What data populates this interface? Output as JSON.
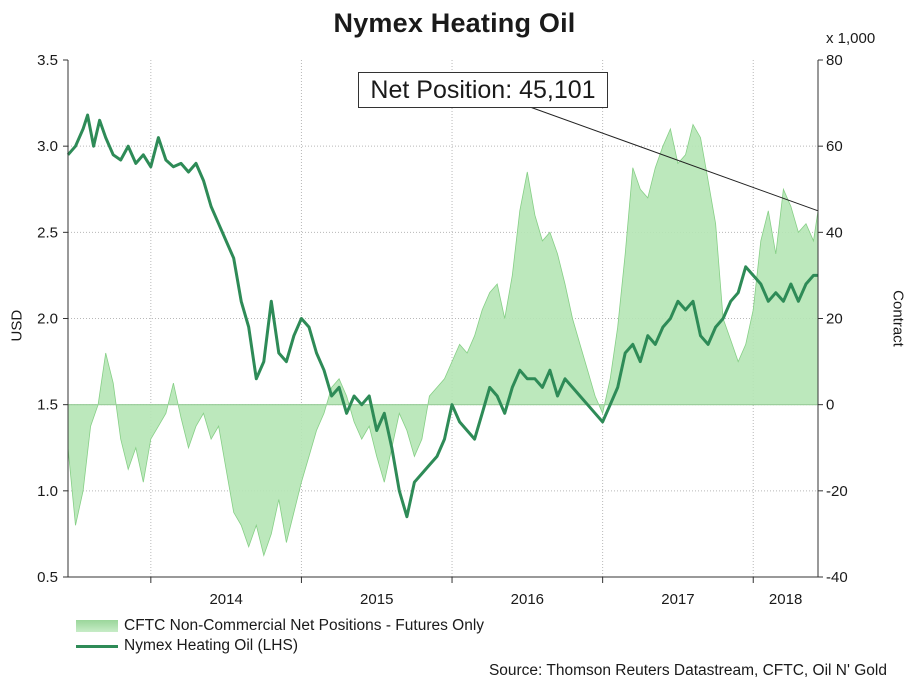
{
  "title": "Nymex Heating Oil",
  "right_axis_multiplier": "x 1,000",
  "y_left_label": "USD",
  "y_right_label": "Contract",
  "annotation": "Net Position: 45,101",
  "source": "Source: Thomson Reuters Datastream, CFTC, Oil N' Gold",
  "legend": {
    "area_label": "CFTC Non-Commercial Net Positions - Futures Only",
    "line_label": "Nymex Heating Oil (LHS)"
  },
  "colors": {
    "line": "#2e8b57",
    "area_fill": "#b5e6b5",
    "area_stroke": "#86cf86",
    "grid": "#b8b8b8"
  },
  "chart_data": {
    "type": "line",
    "title": "Nymex Heating Oil",
    "x_ticks": [
      "2014",
      "2015",
      "2016",
      "2017",
      "2018"
    ],
    "x_range": [
      2013.45,
      2018.43
    ],
    "y_left": {
      "label": "USD",
      "range": [
        0.5,
        3.5
      ],
      "ticks": [
        "0.5",
        "1.0",
        "1.5",
        "2.0",
        "2.5",
        "3.0",
        "3.5"
      ]
    },
    "y_right": {
      "label": "Contract",
      "unit": "x 1,000",
      "range": [
        -40,
        80
      ],
      "ticks": [
        "-40",
        "-20",
        "0",
        "20",
        "40",
        "60",
        "80"
      ]
    },
    "grid": true,
    "legend_position": "bottom-left",
    "series": [
      {
        "name": "CFTC Non-Commercial Net Positions - Futures Only",
        "kind": "area",
        "axis": "right",
        "points": [
          [
            2013.45,
            -10
          ],
          [
            2013.5,
            -28
          ],
          [
            2013.55,
            -20
          ],
          [
            2013.6,
            -5
          ],
          [
            2013.65,
            0
          ],
          [
            2013.7,
            12
          ],
          [
            2013.75,
            5
          ],
          [
            2013.8,
            -8
          ],
          [
            2013.85,
            -15
          ],
          [
            2013.9,
            -10
          ],
          [
            2013.95,
            -18
          ],
          [
            2014.0,
            -8
          ],
          [
            2014.05,
            -5
          ],
          [
            2014.1,
            -2
          ],
          [
            2014.15,
            5
          ],
          [
            2014.2,
            -3
          ],
          [
            2014.25,
            -10
          ],
          [
            2014.3,
            -5
          ],
          [
            2014.35,
            -2
          ],
          [
            2014.4,
            -8
          ],
          [
            2014.45,
            -5
          ],
          [
            2014.5,
            -15
          ],
          [
            2014.55,
            -25
          ],
          [
            2014.6,
            -28
          ],
          [
            2014.65,
            -33
          ],
          [
            2014.7,
            -28
          ],
          [
            2014.75,
            -35
          ],
          [
            2014.8,
            -30
          ],
          [
            2014.85,
            -22
          ],
          [
            2014.9,
            -32
          ],
          [
            2014.95,
            -25
          ],
          [
            2015.0,
            -18
          ],
          [
            2015.05,
            -12
          ],
          [
            2015.1,
            -6
          ],
          [
            2015.15,
            -2
          ],
          [
            2015.2,
            4
          ],
          [
            2015.25,
            6
          ],
          [
            2015.3,
            2
          ],
          [
            2015.35,
            -4
          ],
          [
            2015.4,
            -8
          ],
          [
            2015.45,
            -5
          ],
          [
            2015.5,
            -12
          ],
          [
            2015.55,
            -18
          ],
          [
            2015.6,
            -10
          ],
          [
            2015.65,
            -2
          ],
          [
            2015.7,
            -6
          ],
          [
            2015.75,
            -12
          ],
          [
            2015.8,
            -8
          ],
          [
            2015.85,
            2
          ],
          [
            2015.9,
            4
          ],
          [
            2015.95,
            6
          ],
          [
            2016.0,
            10
          ],
          [
            2016.05,
            14
          ],
          [
            2016.1,
            12
          ],
          [
            2016.15,
            16
          ],
          [
            2016.2,
            22
          ],
          [
            2016.25,
            26
          ],
          [
            2016.3,
            28
          ],
          [
            2016.35,
            20
          ],
          [
            2016.4,
            30
          ],
          [
            2016.45,
            45
          ],
          [
            2016.5,
            54
          ],
          [
            2016.55,
            44
          ],
          [
            2016.6,
            38
          ],
          [
            2016.65,
            40
          ],
          [
            2016.7,
            35
          ],
          [
            2016.75,
            28
          ],
          [
            2016.8,
            20
          ],
          [
            2016.85,
            14
          ],
          [
            2016.9,
            8
          ],
          [
            2016.95,
            2
          ],
          [
            2017.0,
            -2
          ],
          [
            2017.05,
            6
          ],
          [
            2017.1,
            18
          ],
          [
            2017.15,
            35
          ],
          [
            2017.2,
            55
          ],
          [
            2017.25,
            50
          ],
          [
            2017.3,
            48
          ],
          [
            2017.35,
            55
          ],
          [
            2017.4,
            60
          ],
          [
            2017.45,
            64
          ],
          [
            2017.5,
            56
          ],
          [
            2017.55,
            58
          ],
          [
            2017.6,
            65
          ],
          [
            2017.65,
            62
          ],
          [
            2017.7,
            52
          ],
          [
            2017.75,
            42
          ],
          [
            2017.8,
            20
          ],
          [
            2017.85,
            15
          ],
          [
            2017.9,
            10
          ],
          [
            2017.95,
            14
          ],
          [
            2018.0,
            22
          ],
          [
            2018.05,
            38
          ],
          [
            2018.1,
            45
          ],
          [
            2018.15,
            35
          ],
          [
            2018.2,
            50
          ],
          [
            2018.25,
            46
          ],
          [
            2018.3,
            40
          ],
          [
            2018.35,
            42
          ],
          [
            2018.4,
            38
          ],
          [
            2018.43,
            45
          ]
        ]
      },
      {
        "name": "Nymex Heating Oil (LHS)",
        "kind": "line",
        "axis": "left",
        "points": [
          [
            2013.45,
            2.95
          ],
          [
            2013.5,
            3.0
          ],
          [
            2013.55,
            3.1
          ],
          [
            2013.58,
            3.18
          ],
          [
            2013.62,
            3.0
          ],
          [
            2013.66,
            3.15
          ],
          [
            2013.7,
            3.05
          ],
          [
            2013.75,
            2.95
          ],
          [
            2013.8,
            2.92
          ],
          [
            2013.85,
            3.0
          ],
          [
            2013.9,
            2.9
          ],
          [
            2013.95,
            2.95
          ],
          [
            2014.0,
            2.88
          ],
          [
            2014.05,
            3.05
          ],
          [
            2014.1,
            2.92
          ],
          [
            2014.15,
            2.88
          ],
          [
            2014.2,
            2.9
          ],
          [
            2014.25,
            2.85
          ],
          [
            2014.3,
            2.9
          ],
          [
            2014.35,
            2.8
          ],
          [
            2014.4,
            2.65
          ],
          [
            2014.45,
            2.55
          ],
          [
            2014.5,
            2.45
          ],
          [
            2014.55,
            2.35
          ],
          [
            2014.6,
            2.1
          ],
          [
            2014.65,
            1.95
          ],
          [
            2014.7,
            1.65
          ],
          [
            2014.75,
            1.75
          ],
          [
            2014.8,
            2.1
          ],
          [
            2014.85,
            1.8
          ],
          [
            2014.9,
            1.75
          ],
          [
            2014.95,
            1.9
          ],
          [
            2015.0,
            2.0
          ],
          [
            2015.05,
            1.95
          ],
          [
            2015.1,
            1.8
          ],
          [
            2015.15,
            1.7
          ],
          [
            2015.2,
            1.55
          ],
          [
            2015.25,
            1.6
          ],
          [
            2015.3,
            1.45
          ],
          [
            2015.35,
            1.55
          ],
          [
            2015.4,
            1.5
          ],
          [
            2015.45,
            1.55
          ],
          [
            2015.5,
            1.35
          ],
          [
            2015.55,
            1.45
          ],
          [
            2015.6,
            1.25
          ],
          [
            2015.65,
            1.0
          ],
          [
            2015.7,
            0.85
          ],
          [
            2015.75,
            1.05
          ],
          [
            2015.8,
            1.1
          ],
          [
            2015.85,
            1.15
          ],
          [
            2015.9,
            1.2
          ],
          [
            2015.95,
            1.3
          ],
          [
            2016.0,
            1.5
          ],
          [
            2016.05,
            1.4
          ],
          [
            2016.1,
            1.35
          ],
          [
            2016.15,
            1.3
          ],
          [
            2016.2,
            1.45
          ],
          [
            2016.25,
            1.6
          ],
          [
            2016.3,
            1.55
          ],
          [
            2016.35,
            1.45
          ],
          [
            2016.4,
            1.6
          ],
          [
            2016.45,
            1.7
          ],
          [
            2016.5,
            1.65
          ],
          [
            2016.55,
            1.65
          ],
          [
            2016.6,
            1.6
          ],
          [
            2016.65,
            1.7
          ],
          [
            2016.7,
            1.55
          ],
          [
            2016.75,
            1.65
          ],
          [
            2016.8,
            1.6
          ],
          [
            2016.85,
            1.55
          ],
          [
            2016.9,
            1.5
          ],
          [
            2016.95,
            1.45
          ],
          [
            2017.0,
            1.4
          ],
          [
            2017.05,
            1.5
          ],
          [
            2017.1,
            1.6
          ],
          [
            2017.15,
            1.8
          ],
          [
            2017.2,
            1.85
          ],
          [
            2017.25,
            1.75
          ],
          [
            2017.3,
            1.9
          ],
          [
            2017.35,
            1.85
          ],
          [
            2017.4,
            1.95
          ],
          [
            2017.45,
            2.0
          ],
          [
            2017.5,
            2.1
          ],
          [
            2017.55,
            2.05
          ],
          [
            2017.6,
            2.1
          ],
          [
            2017.65,
            1.9
          ],
          [
            2017.7,
            1.85
          ],
          [
            2017.75,
            1.95
          ],
          [
            2017.8,
            2.0
          ],
          [
            2017.85,
            2.1
          ],
          [
            2017.9,
            2.15
          ],
          [
            2017.95,
            2.3
          ],
          [
            2018.0,
            2.25
          ],
          [
            2018.05,
            2.2
          ],
          [
            2018.1,
            2.1
          ],
          [
            2018.15,
            2.15
          ],
          [
            2018.2,
            2.1
          ],
          [
            2018.25,
            2.2
          ],
          [
            2018.3,
            2.1
          ],
          [
            2018.35,
            2.2
          ],
          [
            2018.4,
            2.25
          ],
          [
            2018.43,
            2.25
          ]
        ]
      }
    ]
  }
}
